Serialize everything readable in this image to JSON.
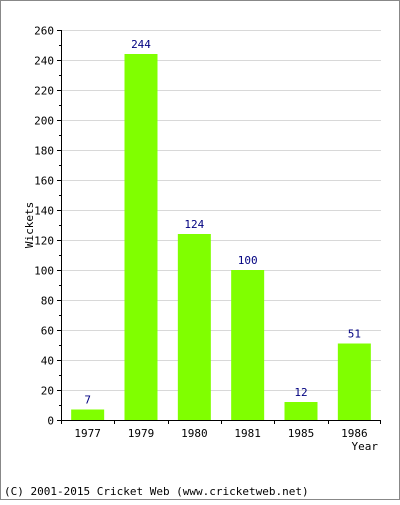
{
  "chart_data": {
    "type": "bar",
    "categories": [
      "1977",
      "1979",
      "1980",
      "1981",
      "1985",
      "1986"
    ],
    "values": [
      7,
      244,
      124,
      100,
      12,
      51
    ],
    "data_labels": [
      "7",
      "244",
      "124",
      "100",
      "12",
      "51"
    ],
    "title": "",
    "xlabel": "Year",
    "ylabel": "Wickets",
    "ylim": [
      0,
      260
    ],
    "y_ticks": [
      0,
      20,
      40,
      60,
      80,
      100,
      120,
      140,
      160,
      180,
      200,
      220,
      240,
      260
    ],
    "y_tick_labels": [
      "0",
      "20",
      "40",
      "60",
      "80",
      "100",
      "120",
      "140",
      "160",
      "180",
      "200",
      "220",
      "240",
      "260"
    ],
    "grid": true,
    "legend": "none"
  },
  "footer": {
    "copyright": "(C) 2001-2015 Cricket Web (www.cricketweb.net)"
  },
  "colors": {
    "bar": "#80ff00",
    "grid": "#d8d8d8",
    "axis": "#000000",
    "value_label": "#000080",
    "frame": "#888888"
  }
}
